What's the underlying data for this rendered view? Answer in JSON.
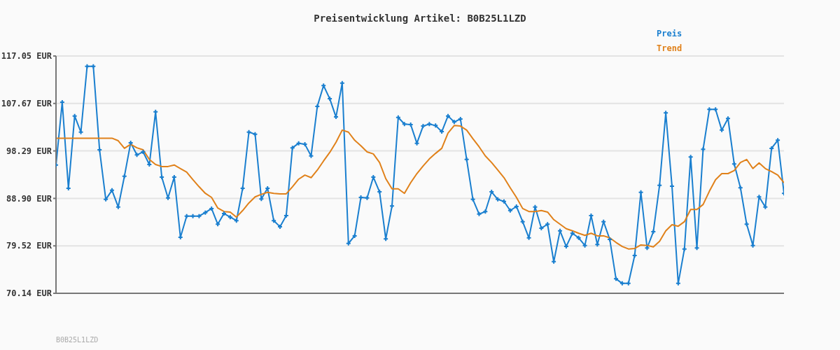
{
  "chart_data": {
    "type": "line",
    "title": "Preisentwicklung Artikel: B0B25L1LZD",
    "categories": [
      null,
      null,
      null,
      null,
      null,
      null,
      null,
      null,
      null,
      null,
      null,
      null,
      null,
      null,
      null,
      null,
      null,
      null,
      null,
      null,
      null,
      null,
      null,
      null,
      null,
      null,
      null,
      null,
      null,
      null,
      null,
      null,
      null,
      null,
      null,
      null,
      null,
      null,
      null,
      null,
      null,
      null,
      null,
      null,
      null,
      null,
      null,
      null,
      null,
      null,
      null,
      null,
      null,
      null,
      null,
      null,
      null,
      null,
      null,
      null,
      null,
      null,
      null,
      null,
      null,
      null,
      null,
      null,
      null,
      null,
      null,
      null,
      null,
      null,
      null,
      null,
      null,
      null,
      null,
      null,
      null,
      null,
      null,
      null,
      null,
      null,
      null,
      null,
      null,
      null,
      null,
      null,
      null,
      null,
      null,
      null,
      null,
      null,
      null,
      null,
      null,
      null,
      null,
      null,
      null,
      null,
      null,
      null,
      null,
      null,
      null,
      null,
      null,
      null,
      null,
      null,
      null,
      null
    ],
    "series": [
      {
        "name": "Preis",
        "color": "#1a7fcf",
        "marker": "cross",
        "values": [
          95.5,
          107.9,
          90.9,
          105.2,
          102.0,
          115.0,
          115.0,
          98.5,
          88.7,
          90.5,
          87.2,
          93.3,
          99.9,
          97.5,
          98.1,
          95.6,
          106.0,
          93.1,
          89.0,
          93.1,
          81.2,
          85.4,
          85.4,
          85.4,
          86.1,
          86.9,
          83.8,
          85.9,
          85.2,
          84.5,
          90.9,
          102.0,
          101.6,
          88.8,
          90.9,
          84.5,
          83.3,
          85.5,
          98.9,
          99.8,
          99.6,
          97.3,
          107.1,
          111.2,
          108.6,
          105.0,
          111.7,
          80.0,
          81.5,
          89.1,
          89.0,
          93.1,
          90.2,
          80.9,
          87.4,
          104.9,
          103.6,
          103.5,
          99.8,
          103.2,
          103.6,
          103.3,
          102.1,
          105.2,
          104.0,
          104.6,
          96.6,
          88.7,
          85.8,
          86.3,
          90.2,
          88.7,
          88.3,
          86.5,
          87.3,
          84.3,
          81.1,
          87.2,
          83.0,
          83.8,
          76.4,
          82.5,
          79.4,
          82.0,
          81.1,
          79.6,
          85.5,
          79.8,
          84.3,
          80.8,
          73.0,
          72.1,
          72.1,
          77.6,
          90.1,
          79.1,
          82.3,
          91.5,
          105.8,
          91.3,
          72.1,
          78.9,
          97.1,
          79.1,
          98.6,
          106.5,
          106.5,
          102.4,
          104.7,
          95.7,
          91.0,
          83.8,
          79.6,
          89.2,
          87.2,
          98.8,
          100.4,
          89.9
        ]
      },
      {
        "name": "Trend",
        "color": "#e0811a",
        "marker": "none",
        "values": [
          100.8,
          100.8,
          100.8,
          100.8,
          100.8,
          100.8,
          100.8,
          100.8,
          100.8,
          100.8,
          100.3,
          98.8,
          99.6,
          98.9,
          98.5,
          96.6,
          95.6,
          95.2,
          95.2,
          95.5,
          94.8,
          94.1,
          92.6,
          91.2,
          89.9,
          89.1,
          87.0,
          86.3,
          86.2,
          85.2,
          86.5,
          88.0,
          89.2,
          89.7,
          90.1,
          89.9,
          89.8,
          89.8,
          91.2,
          92.7,
          93.5,
          93.0,
          94.5,
          96.3,
          98.0,
          100.0,
          102.4,
          102.0,
          100.4,
          99.3,
          98.1,
          97.7,
          96.0,
          92.8,
          90.8,
          90.8,
          89.9,
          92.0,
          93.8,
          95.3,
          96.7,
          97.8,
          98.8,
          101.8,
          103.3,
          103.2,
          102.4,
          100.7,
          99.1,
          97.3,
          96.0,
          94.5,
          93.0,
          91.0,
          89.1,
          86.9,
          86.3,
          86.3,
          86.5,
          86.2,
          84.7,
          83.8,
          82.9,
          82.5,
          82.0,
          81.6,
          82.0,
          81.5,
          81.5,
          81.1,
          80.2,
          79.4,
          78.9,
          79.0,
          79.7,
          79.6,
          79.3,
          80.4,
          82.5,
          83.7,
          83.4,
          84.3,
          86.7,
          86.7,
          87.7,
          90.3,
          92.6,
          93.8,
          93.8,
          94.4,
          96.0,
          96.6,
          94.8,
          95.9,
          94.8,
          94.2,
          93.5,
          92.0
        ]
      }
    ],
    "ylim": [
      70.14,
      117.05
    ],
    "yticks": [
      {
        "value": 70.14,
        "label": "70.14 EUR"
      },
      {
        "value": 79.52,
        "label": "79.52 EUR"
      },
      {
        "value": 88.9,
        "label": "88.90 EUR"
      },
      {
        "value": 98.29,
        "label": "98.29 EUR"
      },
      {
        "value": 107.67,
        "label": "107.67 EUR"
      },
      {
        "value": 117.05,
        "label": "117.05 EUR"
      }
    ],
    "grid": "y",
    "legend": "top right",
    "line_style": "solid",
    "annotations": [
      "B0B25L1LZD"
    ]
  }
}
